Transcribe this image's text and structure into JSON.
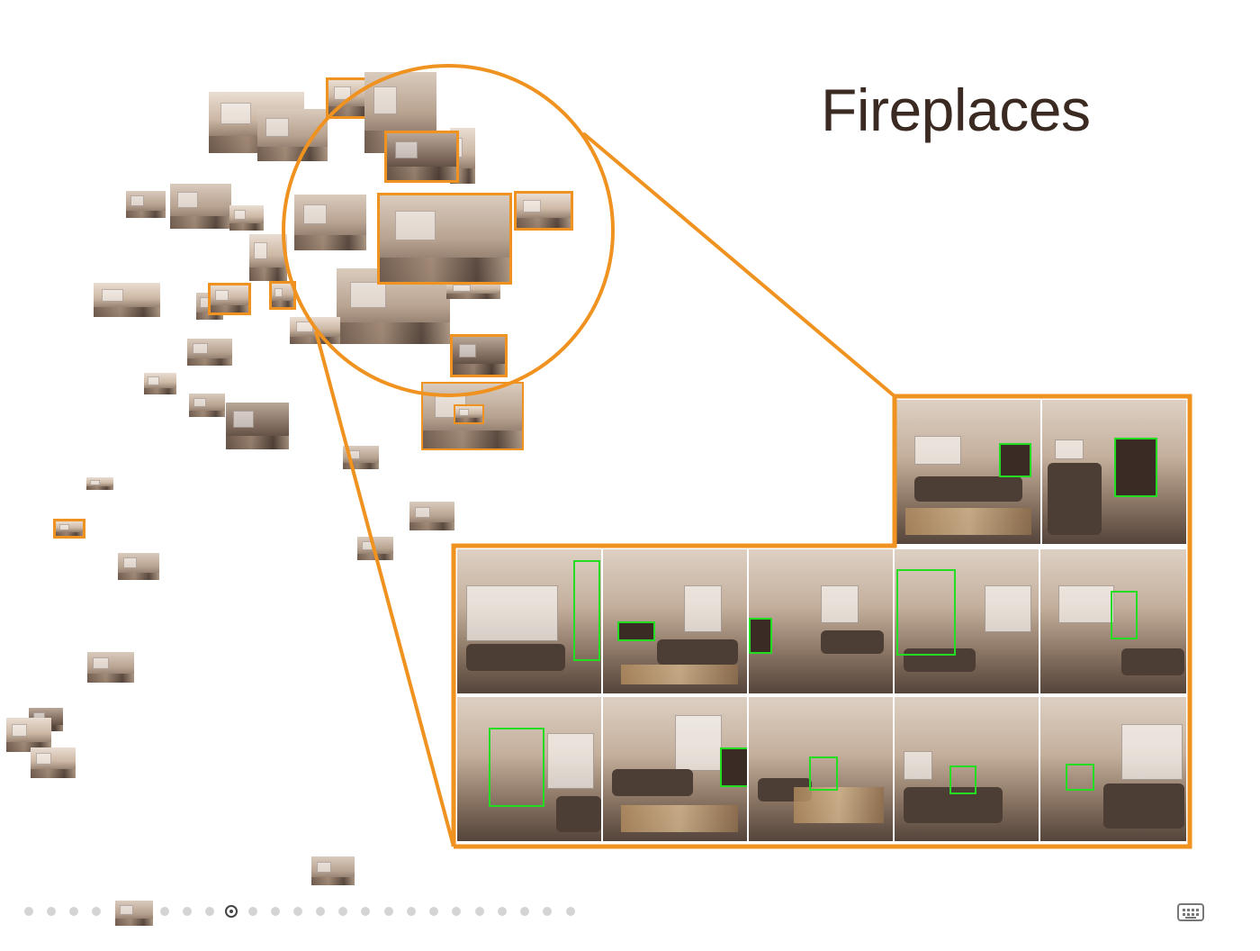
{
  "slide": {
    "title": "Fireplaces",
    "current_slide_index": 9,
    "total_dots": 25
  },
  "colors": {
    "highlight": "#f0921f",
    "detection_box": "#22dd22",
    "title_text": "#3b2a22"
  },
  "icons": {
    "keyboard": "keyboard-icon"
  }
}
